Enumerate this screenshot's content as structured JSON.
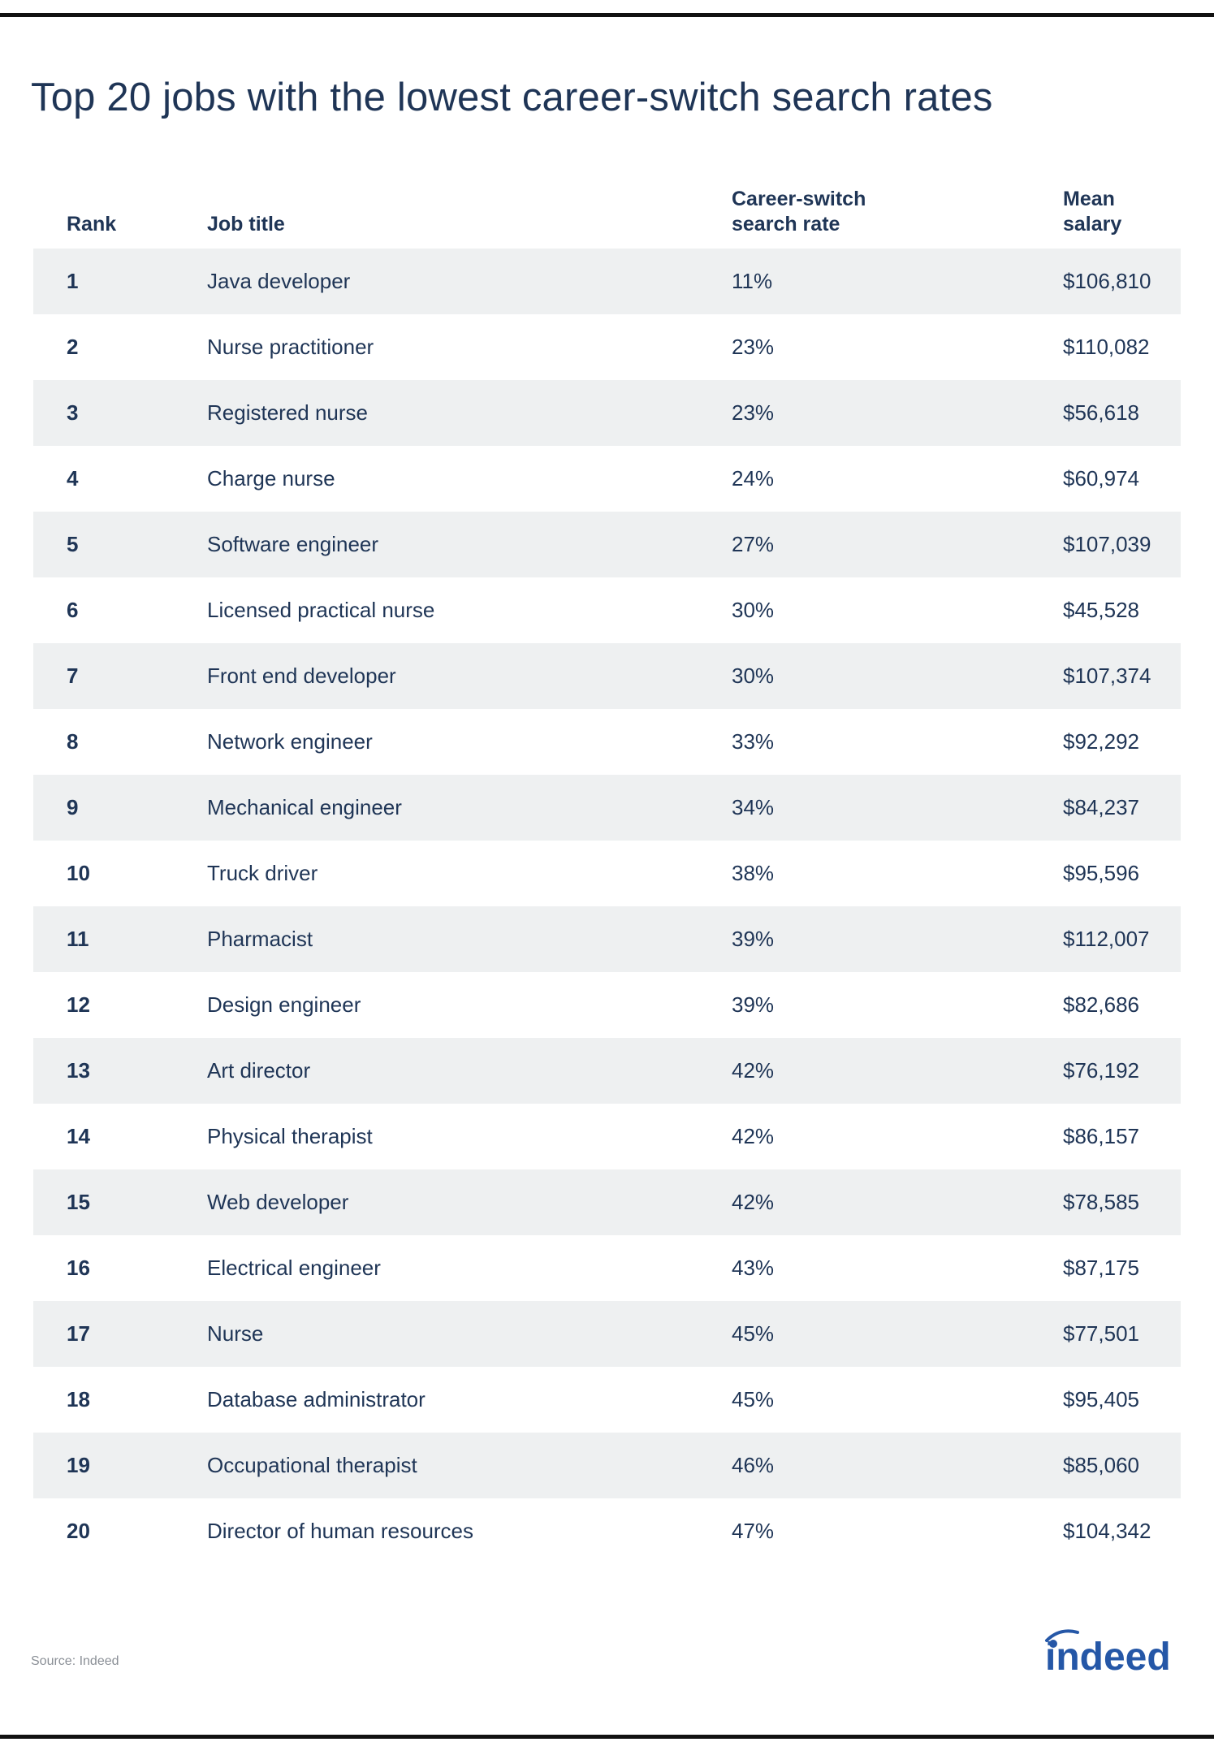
{
  "title": "Top 20 jobs with the lowest career-switch search rates",
  "columns": {
    "rank": "Rank",
    "job_title": "Job title",
    "rate_line1": "Career-switch",
    "rate_line2": "search rate",
    "salary_line1": "Mean",
    "salary_line2": "salary"
  },
  "chart_data": {
    "type": "table",
    "title": "Top 20 jobs with the lowest career-switch search rates",
    "columns": [
      "Rank",
      "Job title",
      "Career-switch search rate",
      "Mean salary"
    ],
    "rows": [
      {
        "rank": "1",
        "job": "Java developer",
        "rate": "11%",
        "salary": "$106,810"
      },
      {
        "rank": "2",
        "job": "Nurse practitioner",
        "rate": "23%",
        "salary": "$110,082"
      },
      {
        "rank": "3",
        "job": "Registered nurse",
        "rate": "23%",
        "salary": "$56,618"
      },
      {
        "rank": "4",
        "job": "Charge nurse",
        "rate": "24%",
        "salary": "$60,974"
      },
      {
        "rank": "5",
        "job": "Software engineer",
        "rate": "27%",
        "salary": "$107,039"
      },
      {
        "rank": "6",
        "job": "Licensed practical nurse",
        "rate": "30%",
        "salary": "$45,528"
      },
      {
        "rank": "7",
        "job": "Front end developer",
        "rate": "30%",
        "salary": "$107,374"
      },
      {
        "rank": "8",
        "job": "Network engineer",
        "rate": "33%",
        "salary": "$92,292"
      },
      {
        "rank": "9",
        "job": "Mechanical engineer",
        "rate": "34%",
        "salary": "$84,237"
      },
      {
        "rank": "10",
        "job": "Truck driver",
        "rate": "38%",
        "salary": "$95,596"
      },
      {
        "rank": "11",
        "job": "Pharmacist",
        "rate": "39%",
        "salary": "$112,007"
      },
      {
        "rank": "12",
        "job": "Design engineer",
        "rate": "39%",
        "salary": "$82,686"
      },
      {
        "rank": "13",
        "job": "Art director",
        "rate": "42%",
        "salary": "$76,192"
      },
      {
        "rank": "14",
        "job": "Physical therapist",
        "rate": "42%",
        "salary": "$86,157"
      },
      {
        "rank": "15",
        "job": "Web developer",
        "rate": "42%",
        "salary": "$78,585"
      },
      {
        "rank": "16",
        "job": "Electrical engineer",
        "rate": "43%",
        "salary": "$87,175"
      },
      {
        "rank": "17",
        "job": "Nurse",
        "rate": "45%",
        "salary": "$77,501"
      },
      {
        "rank": "18",
        "job": "Database administrator",
        "rate": "45%",
        "salary": "$95,405"
      },
      {
        "rank": "19",
        "job": "Occupational therapist",
        "rate": "46%",
        "salary": "$85,060"
      },
      {
        "rank": "20",
        "job": "Director of human resources",
        "rate": "47%",
        "salary": "$104,342"
      }
    ]
  },
  "source": "Source: Indeed",
  "logo": {
    "icon": "indeed-logo-icon",
    "text": "indeed",
    "color": "#2557a7"
  },
  "colors": {
    "text": "#1f3556",
    "row_shade": "#eef0f1",
    "rule": "#111111",
    "source": "#8a8f96"
  }
}
